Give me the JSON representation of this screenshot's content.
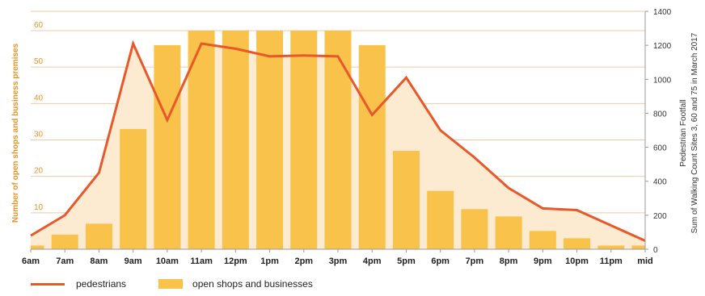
{
  "chart_data": {
    "type": "bar",
    "categories": [
      "6am",
      "7am",
      "8am",
      "9am",
      "10am",
      "11am",
      "12pm",
      "1pm",
      "2pm",
      "3pm",
      "4pm",
      "5pm",
      "6pm",
      "7pm",
      "8pm",
      "9pm",
      "10pm",
      "11pm",
      "mid"
    ],
    "series": [
      {
        "name": "open shops and businesses",
        "type": "bar",
        "axis": "left",
        "values": [
          1,
          4,
          7,
          33,
          56,
          60,
          60,
          60,
          60,
          60,
          56,
          27,
          16,
          11,
          9,
          5,
          3,
          1,
          1
        ]
      },
      {
        "name": "pedestrians",
        "type": "line",
        "axis": "right",
        "values": [
          80,
          200,
          450,
          1210,
          760,
          1210,
          1180,
          1135,
          1140,
          1135,
          790,
          1010,
          700,
          540,
          360,
          240,
          230,
          140,
          50
        ]
      }
    ],
    "y_left": {
      "label": "Number of open shops and business premises",
      "ticks": [
        10,
        20,
        30,
        40,
        50,
        60
      ],
      "range": [
        0,
        60
      ]
    },
    "y_right": {
      "label_line1": "Pedestrian Footfall",
      "label_line2": "Sum of Walking Count Sites 3, 60 and 75  in March 2017",
      "ticks": [
        0,
        200,
        400,
        600,
        800,
        1000,
        1200,
        1400
      ],
      "range": [
        0,
        1400
      ]
    },
    "grid": true,
    "legend_position": "bottom-left",
    "colors": {
      "bars": "#f9c24a",
      "line": "#e8582a",
      "area": "#fcebd0",
      "grid": "#f3c9a6",
      "left_axis_text": "#e8932a"
    }
  },
  "legend": {
    "line_label": "pedestrians",
    "bar_label": "open shops and businesses"
  }
}
